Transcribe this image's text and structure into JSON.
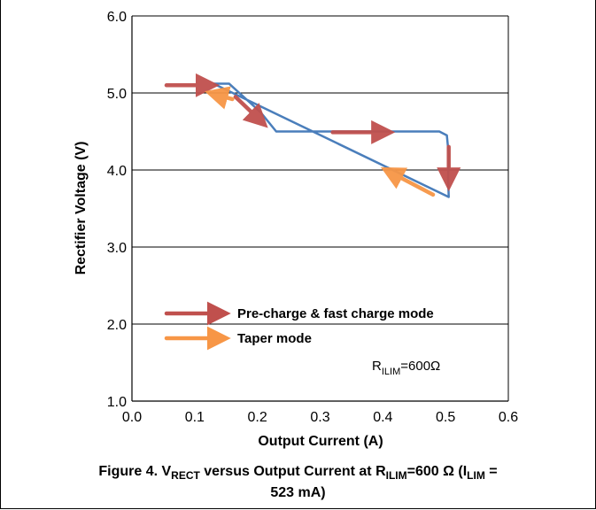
{
  "chart_data": {
    "type": "line",
    "xlabel": "Output Current (A)",
    "ylabel": "Rectifier Voltage (V)",
    "xlim": [
      0.0,
      0.6
    ],
    "ylim": [
      1.0,
      6.0
    ],
    "x_ticks": [
      "0.0",
      "0.1",
      "0.2",
      "0.3",
      "0.4",
      "0.5",
      "0.6"
    ],
    "y_ticks": [
      "1.0",
      "2.0",
      "3.0",
      "4.0",
      "5.0",
      "6.0"
    ],
    "grid": "horizontal",
    "series": [
      {
        "color": "#4a7ebb",
        "x": [
          0.13,
          0.155,
          0.205,
          0.23,
          0.49,
          0.502,
          0.505,
          0.504,
          0.505,
          0.13
        ],
        "y": [
          5.12,
          5.12,
          4.75,
          4.5,
          4.5,
          4.45,
          4.2,
          3.9,
          3.65,
          5.12
        ]
      }
    ],
    "arrows": {
      "precharge_color": "#c0504d",
      "taper_color": "#f79646",
      "precharge": [
        {
          "from": [
            0.055,
            5.1
          ],
          "to": [
            0.13,
            5.1
          ]
        },
        {
          "from": [
            0.165,
            4.95
          ],
          "to": [
            0.21,
            4.6
          ]
        },
        {
          "from": [
            0.32,
            4.49
          ],
          "to": [
            0.41,
            4.49
          ]
        },
        {
          "from": [
            0.505,
            4.3
          ],
          "to": [
            0.505,
            3.8
          ]
        }
      ],
      "taper": [
        {
          "from": [
            0.48,
            3.68
          ],
          "to": [
            0.405,
            4.0
          ]
        },
        {
          "from": [
            0.16,
            4.92
          ],
          "to": [
            0.125,
            5.0
          ]
        }
      ]
    },
    "legend": [
      {
        "label": "Pre-charge & fast charge mode",
        "color": "#c0504d"
      },
      {
        "label": "Taper mode",
        "color": "#f79646"
      }
    ],
    "annotation": {
      "main": "R",
      "sub": "ILIM",
      "rest": "=600Ω"
    },
    "legend_position": "lower-left"
  },
  "caption": {
    "line1_a": "Figure 4. V",
    "line1_sub1": "RECT",
    "line1_b": " versus Output Current at R",
    "line1_sub2": "ILIM",
    "line1_c": "=600 Ω (I",
    "line1_sub3": "LIM",
    "line1_d": " =",
    "line2": "523 mA)"
  }
}
